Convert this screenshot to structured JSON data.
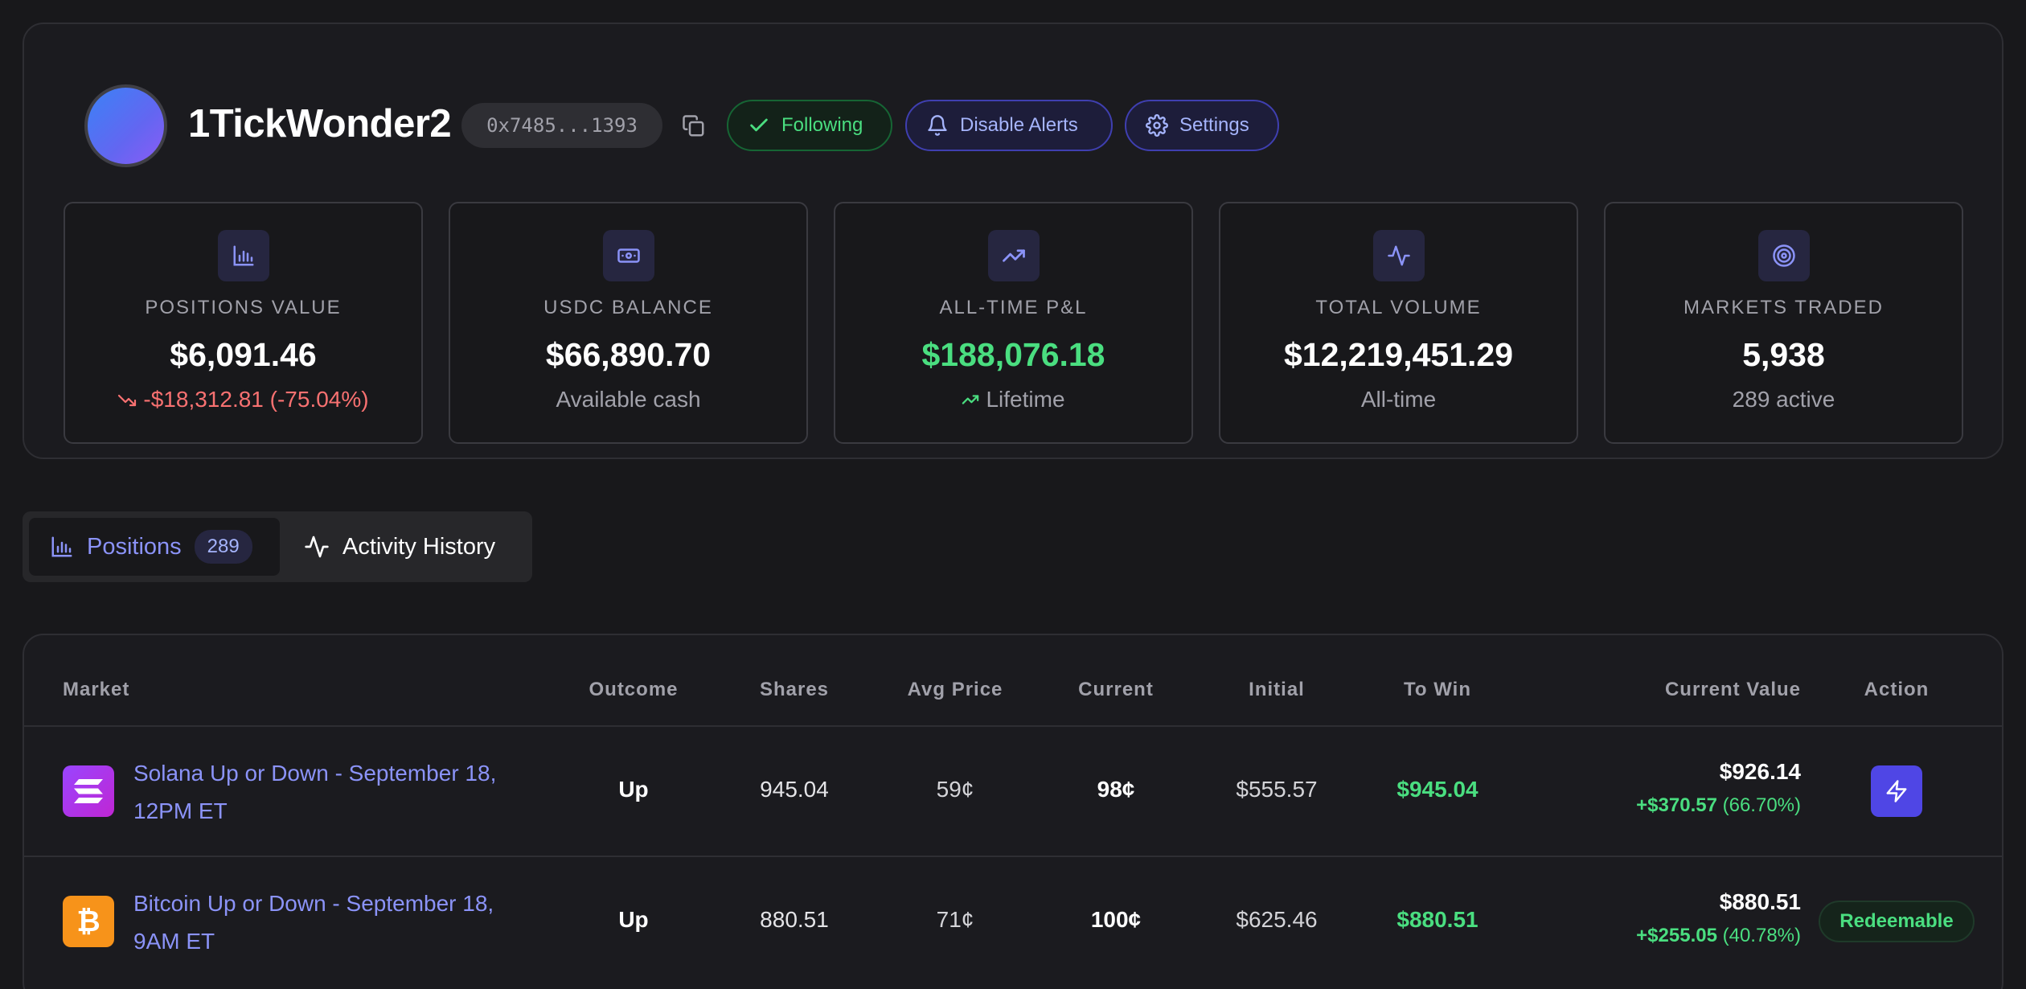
{
  "profile": {
    "username": "1TickWonder2",
    "address": "0x7485...1393",
    "buttons": {
      "following": "Following",
      "disable_alerts": "Disable Alerts",
      "settings": "Settings"
    }
  },
  "stats": [
    {
      "icon": "bar-chart-icon",
      "label": "POSITIONS VALUE",
      "value": "$6,091.46",
      "sub": "-$18,312.81 (-75.04%)"
    },
    {
      "icon": "banknote-icon",
      "label": "USDC BALANCE",
      "value": "$66,890.70",
      "sub": "Available cash"
    },
    {
      "icon": "trending-up-icon",
      "label": "ALL-TIME P&L",
      "value": "$188,076.18",
      "sub": "Lifetime"
    },
    {
      "icon": "activity-icon",
      "label": "TOTAL VOLUME",
      "value": "$12,219,451.29",
      "sub": "All-time"
    },
    {
      "icon": "target-icon",
      "label": "MARKETS TRADED",
      "value": "5,938",
      "sub": "289 active"
    }
  ],
  "colors": {
    "accent": "#8b93f8",
    "positive": "#4ade80",
    "negative": "#f87171",
    "background": "#18181b"
  },
  "tabs": {
    "positions": {
      "label": "Positions",
      "count": "289"
    },
    "activity": {
      "label": "Activity History"
    }
  },
  "table": {
    "headers": {
      "market": "Market",
      "outcome": "Outcome",
      "shares": "Shares",
      "avg_price": "Avg Price",
      "current": "Current",
      "initial": "Initial",
      "to_win": "To Win",
      "current_value": "Current Value",
      "action": "Action"
    },
    "rows": [
      {
        "icon": "solana-icon",
        "market_line1": "Solana Up or Down - September 18,",
        "market_line2": "12PM ET",
        "outcome": "Up",
        "shares": "945.04",
        "avg_price": "59¢",
        "current": "98¢",
        "initial": "$555.57",
        "to_win": "$945.04",
        "current_value": "$926.14",
        "pnl_amount": "+$370.57",
        "pnl_percent": "(66.70%)",
        "action": "lightning-icon"
      },
      {
        "icon": "bitcoin-icon",
        "market_line1": "Bitcoin Up or Down - September 18,",
        "market_line2": "9AM ET",
        "outcome": "Up",
        "shares": "880.51",
        "avg_price": "71¢",
        "current": "100¢",
        "initial": "$625.46",
        "to_win": "$880.51",
        "current_value": "$880.51",
        "pnl_amount": "+$255.05",
        "pnl_percent": "(40.78%)",
        "action": "Redeemable"
      }
    ]
  }
}
